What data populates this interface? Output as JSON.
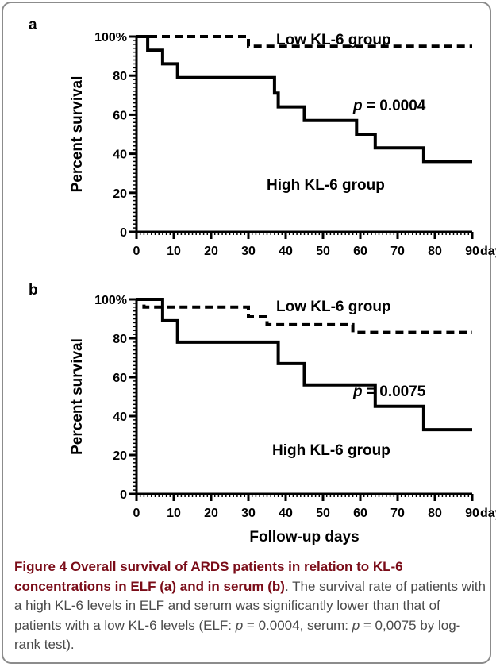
{
  "chart_data": [
    {
      "panel": "a",
      "type": "line",
      "xlabel": "",
      "ylabel": "Percent survival",
      "x_unit": "days",
      "xlim": [
        0,
        90
      ],
      "ylim": [
        0,
        100
      ],
      "x_ticks": [
        0,
        10,
        20,
        30,
        40,
        50,
        60,
        70,
        80,
        90
      ],
      "y_ticks": [
        0,
        20,
        40,
        60,
        80,
        100
      ],
      "y_tick_labels": [
        "0",
        "20",
        "40",
        "60",
        "80",
        "100%"
      ],
      "series": [
        {
          "name": "Low KL-6 group",
          "style": "dashed",
          "step": [
            [
              0,
              100
            ],
            [
              30,
              100
            ],
            [
              30,
              95
            ],
            [
              90,
              95
            ]
          ]
        },
        {
          "name": "High KL-6 group",
          "style": "solid",
          "step": [
            [
              0,
              100
            ],
            [
              3,
              100
            ],
            [
              3,
              93
            ],
            [
              7,
              93
            ],
            [
              7,
              86
            ],
            [
              11,
              86
            ],
            [
              11,
              79
            ],
            [
              37,
              79
            ],
            [
              37,
              71
            ],
            [
              38,
              71
            ],
            [
              38,
              64
            ],
            [
              45,
              64
            ],
            [
              45,
              57
            ],
            [
              59,
              57
            ],
            [
              59,
              50
            ],
            [
              64,
              50
            ],
            [
              64,
              43
            ],
            [
              77,
              43
            ],
            [
              77,
              36
            ],
            [
              90,
              36
            ]
          ]
        }
      ],
      "annotation": {
        "p_symbol": "p",
        "p_text": " = 0.0004"
      }
    },
    {
      "panel": "b",
      "type": "line",
      "xlabel": "Follow-up days",
      "ylabel": "Percent survival",
      "x_unit": "days",
      "xlim": [
        0,
        90
      ],
      "ylim": [
        0,
        100
      ],
      "x_ticks": [
        0,
        10,
        20,
        30,
        40,
        50,
        60,
        70,
        80,
        90
      ],
      "y_ticks": [
        0,
        20,
        40,
        60,
        80,
        100
      ],
      "y_tick_labels": [
        "0",
        "20",
        "40",
        "60",
        "80",
        "100%"
      ],
      "series": [
        {
          "name": "Low KL-6 group",
          "style": "dashed",
          "step": [
            [
              0,
              100
            ],
            [
              2,
              100
            ],
            [
              2,
              96
            ],
            [
              30,
              96
            ],
            [
              30,
              91
            ],
            [
              35,
              91
            ],
            [
              35,
              87
            ],
            [
              58,
              87
            ],
            [
              58,
              83
            ],
            [
              90,
              83
            ]
          ]
        },
        {
          "name": "High KL-6 group",
          "style": "solid",
          "step": [
            [
              0,
              100
            ],
            [
              7,
              100
            ],
            [
              7,
              89
            ],
            [
              11,
              89
            ],
            [
              11,
              78
            ],
            [
              38,
              78
            ],
            [
              38,
              67
            ],
            [
              45,
              67
            ],
            [
              45,
              56
            ],
            [
              64,
              56
            ],
            [
              64,
              45
            ],
            [
              77,
              45
            ],
            [
              77,
              33
            ],
            [
              90,
              33
            ]
          ]
        }
      ],
      "annotation": {
        "p_symbol": "p",
        "p_text": " = 0.0075"
      }
    }
  ],
  "caption": {
    "title_lead": "Figure 4 Overall survival of ARDS patients in relation to KL-6 concentrations in ELF (a) and in serum (b)",
    "line1": ". The survival rate of",
    "line2": "patients with a high KL-6 levels in ELF and serum was significantly",
    "line3_a": "lower than that of patients with a low KL-6 levels (ELF: ",
    "p1": "p",
    "line3_b": " = 0.0004,",
    "line4_a": "serum: ",
    "p2": "p",
    "line4_b": " = 0,0075 by log-rank test)."
  }
}
